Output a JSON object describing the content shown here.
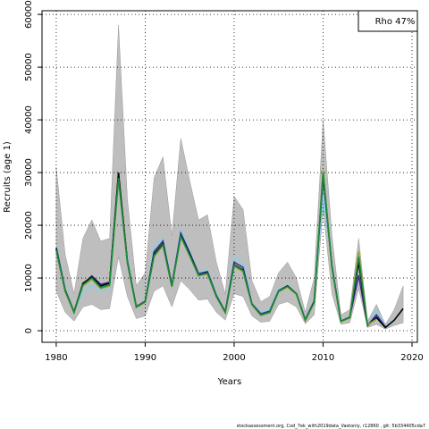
{
  "chart_data": {
    "type": "line",
    "x_label": "Years",
    "y_label": "Recruits (age 1)",
    "annotation": "Rho 47%",
    "footer": "stockassessment.org, Cod_7ek_with2019data_Vastonly, r12860 , git: 5b334405cda7",
    "x": [
      1980,
      1981,
      1982,
      1983,
      1984,
      1985,
      1986,
      1987,
      1988,
      1989,
      1990,
      1991,
      1992,
      1993,
      1994,
      1995,
      1996,
      1997,
      1998,
      1999,
      2000,
      2001,
      2002,
      2003,
      2004,
      2005,
      2006,
      2007,
      2008,
      2009,
      2010,
      2011,
      2012,
      2013,
      2014,
      2015,
      2016,
      2017,
      2018,
      2019
    ],
    "band": {
      "color": "#bebebe",
      "upper": [
        31000,
        14500,
        7000,
        17500,
        21000,
        17000,
        17500,
        58000,
        25000,
        8500,
        11000,
        29000,
        33000,
        18000,
        36500,
        28500,
        21000,
        22000,
        13000,
        7000,
        25500,
        23000,
        9500,
        5500,
        6500,
        11000,
        13000,
        10000,
        3500,
        10000,
        40000,
        18000,
        3000,
        4000,
        17500,
        1800,
        5000,
        1200,
        4000,
        8500
      ],
      "lower": [
        7500,
        3500,
        1800,
        4500,
        5000,
        4000,
        4200,
        14000,
        6500,
        2300,
        2800,
        7500,
        8500,
        4500,
        9500,
        7800,
        5800,
        6000,
        3500,
        2000,
        7000,
        6500,
        2800,
        1600,
        1800,
        5000,
        5500,
        4500,
        1300,
        3000,
        23000,
        7000,
        1200,
        1500,
        8000,
        600,
        1200,
        300,
        1000,
        1500
      ]
    },
    "series": [
      {
        "color": "#87ceeb",
        "values": [
          16000,
          8000,
          3500,
          7500,
          8500,
          7500,
          8000,
          28000,
          13500,
          4500,
          5500,
          16000,
          17500,
          8500,
          19000,
          15000,
          11000,
          11500,
          7000,
          3500,
          14000,
          13000,
          5000,
          3500,
          4000,
          7800,
          8600,
          7000,
          2200,
          5800,
          26000,
          12500,
          1800,
          2500,
          13500,
          1000,
          4000,
          700,
          2300,
          null
        ]
      },
      {
        "color": "#3b2e8c",
        "values": [
          15800,
          7800,
          3600,
          8800,
          10400,
          8800,
          9200,
          29500,
          13200,
          4600,
          5600,
          15000,
          17000,
          8600,
          18500,
          14800,
          10800,
          11200,
          6700,
          3600,
          13000,
          12000,
          5100,
          3200,
          3700,
          7600,
          8500,
          7000,
          2100,
          5600,
          29000,
          12200,
          1800,
          2600,
          10500,
          1000,
          3000,
          700,
          null,
          null
        ]
      },
      {
        "color": "#000000",
        "values": [
          15500,
          7500,
          3500,
          9000,
          10200,
          8500,
          9000,
          30000,
          13000,
          4500,
          5500,
          14500,
          16500,
          8500,
          18000,
          14500,
          10500,
          11000,
          6500,
          3500,
          12500,
          11500,
          5000,
          3000,
          3500,
          7500,
          8500,
          7000,
          2000,
          5500,
          30000,
          12000,
          1800,
          2500,
          13000,
          1000,
          2500,
          600,
          2000,
          4200
        ]
      },
      {
        "color": "#9aa52a",
        "values": [
          15200,
          7400,
          3400,
          8500,
          9800,
          8000,
          8500,
          28500,
          12800,
          4400,
          5400,
          14000,
          16200,
          8300,
          17800,
          14200,
          10400,
          10800,
          6400,
          3400,
          12200,
          11200,
          4900,
          2900,
          3400,
          7400,
          8300,
          6900,
          1900,
          5300,
          30500,
          11800,
          1700,
          2400,
          15000,
          1100,
          2200,
          null,
          null,
          null
        ]
      },
      {
        "color": "#1a8a3c",
        "values": [
          15300,
          7600,
          3500,
          8700,
          10000,
          8200,
          8700,
          29000,
          12900,
          4500,
          5500,
          14300,
          16300,
          8400,
          17900,
          14300,
          10500,
          10900,
          6500,
          3500,
          12400,
          11400,
          5000,
          3000,
          3500,
          7500,
          8400,
          7000,
          2000,
          5400,
          30000,
          12000,
          1800,
          2500,
          14000,
          900,
          null,
          null,
          null,
          null
        ]
      }
    ],
    "xlim": [
      1978.4,
      2020.6
    ],
    "xticks": [
      1980,
      1990,
      2000,
      2010,
      2020
    ],
    "ylim": [
      -2200,
      60700
    ],
    "yticks": [
      0,
      10000,
      20000,
      30000,
      40000,
      50000,
      60000
    ],
    "grid": true
  }
}
